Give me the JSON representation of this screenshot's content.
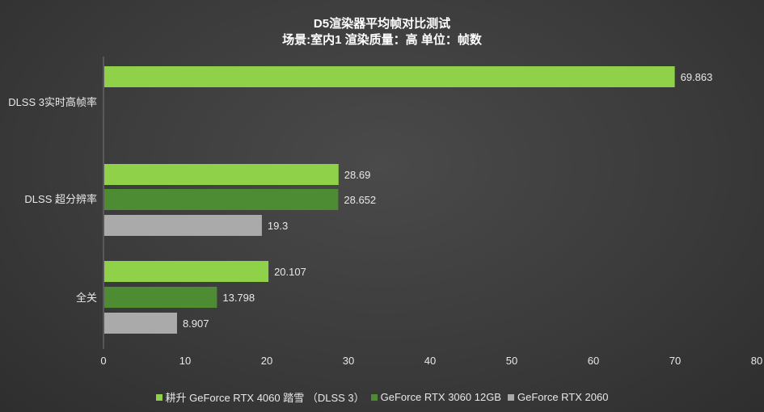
{
  "chart_data": {
    "type": "bar",
    "orientation": "horizontal",
    "title": "D5渲染器平均帧对比测试",
    "subtitle": "场景:室内1  渲染质量：高 单位：帧数",
    "categories": [
      "DLSS 3实时高帧率",
      "DLSS 超分辨率",
      "全关"
    ],
    "series": [
      {
        "name": "耕升 GeForce RTX 4060 踏雪 （DLSS 3）",
        "color": "#8fd24a",
        "values": [
          69.863,
          28.69,
          20.107
        ]
      },
      {
        "name": "GeForce RTX 3060 12GB",
        "color": "#4e8c33",
        "values": [
          null,
          28.652,
          13.798
        ]
      },
      {
        "name": "GeForce RTX 2060",
        "color": "#aaaaaa",
        "values": [
          null,
          19.3,
          8.907
        ]
      }
    ],
    "data_labels": [
      [
        "69.863",
        "28.69",
        "20.107"
      ],
      [
        "",
        "28.652",
        "13.798"
      ],
      [
        "",
        "19.3",
        "8.907"
      ]
    ],
    "xlim": [
      0,
      80
    ],
    "xticks": [
      "0",
      "10",
      "20",
      "30",
      "40",
      "50",
      "60",
      "70",
      "80"
    ],
    "grid": false,
    "legend_position": "bottom"
  }
}
